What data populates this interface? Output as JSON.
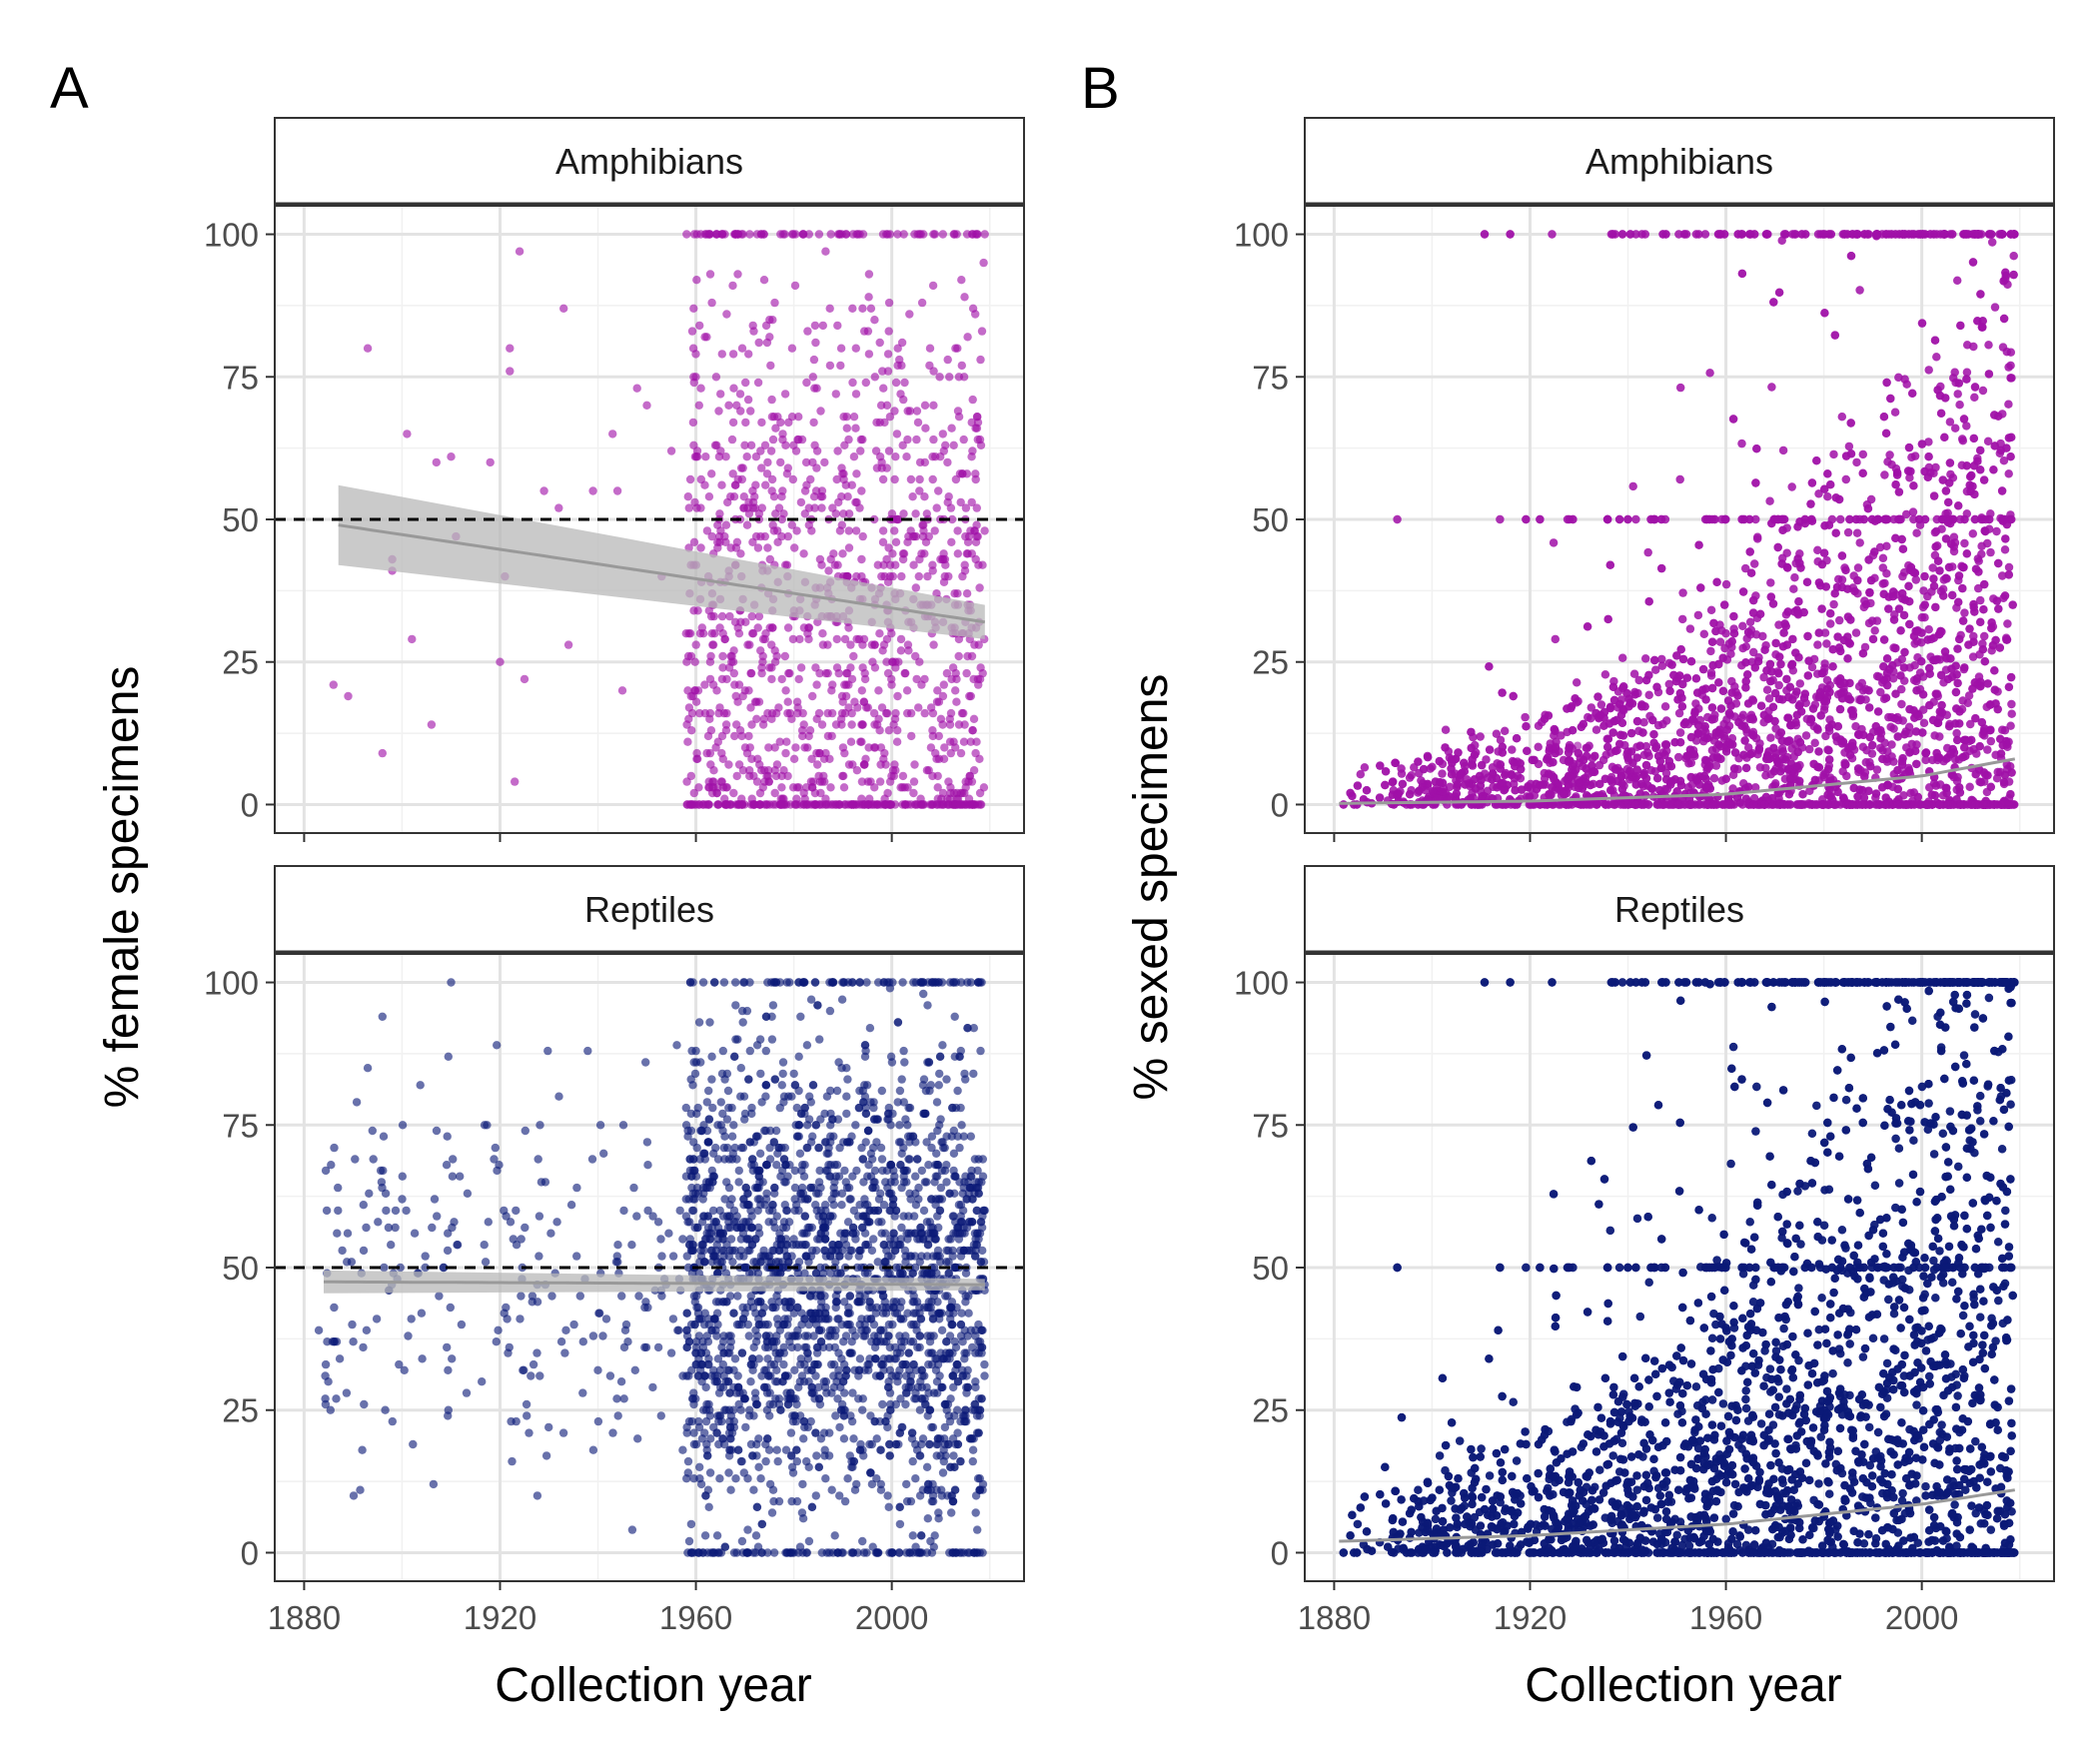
{
  "figure": {
    "panel_letters": [
      "A",
      "B"
    ],
    "xlabel": "Collection year",
    "ylabel_left": "% female specimens",
    "ylabel_right": "% sexed specimens"
  },
  "colors": {
    "amphibians": "#a010a8",
    "reptiles": "#0b1a78",
    "trend_line": "#999999",
    "ribbon": "#b8b8b8",
    "grid_major": "#e3e3e3",
    "grid_minor": "#f1f1f1",
    "reference_line": "#000000"
  },
  "chart_data": [
    {
      "id": "A-amphibians",
      "type": "scatter",
      "panel": "A",
      "facet": "Amphibians",
      "xlabel": "Collection year",
      "ylabel": "% female specimens",
      "xlim": [
        1874,
        2027
      ],
      "ylim": [
        -5,
        105
      ],
      "x_ticks": [
        1880,
        1920,
        1960,
        2000
      ],
      "y_ticks": [
        0,
        25,
        50,
        75,
        100
      ],
      "grid": true,
      "reference_line_y": 50,
      "trend": {
        "x": [
          1887,
          2019
        ],
        "y": [
          49,
          32
        ],
        "band_lower": [
          42,
          29
        ],
        "band_upper": [
          56,
          35
        ]
      },
      "points": {
        "approx_count": 1400,
        "dense_range": [
          1958,
          2019
        ],
        "sparse_points": [
          [
            1886,
            21
          ],
          [
            1893,
            80
          ],
          [
            1889,
            19
          ],
          [
            1896,
            9
          ],
          [
            1898,
            41
          ],
          [
            1898,
            43
          ],
          [
            1901,
            65
          ],
          [
            1902,
            29
          ],
          [
            1906,
            14
          ],
          [
            1907,
            60
          ],
          [
            1910,
            61
          ],
          [
            1911,
            47
          ],
          [
            1918,
            60
          ],
          [
            1920,
            25
          ],
          [
            1921,
            40
          ],
          [
            1922,
            80
          ],
          [
            1922,
            76
          ],
          [
            1923,
            4
          ],
          [
            1924,
            97
          ],
          [
            1925,
            22
          ],
          [
            1929,
            55
          ],
          [
            1932,
            52
          ],
          [
            1933,
            87
          ],
          [
            1934,
            28
          ],
          [
            1939,
            55
          ],
          [
            1943,
            65
          ],
          [
            1944,
            55
          ],
          [
            1945,
            20
          ],
          [
            1948,
            73
          ],
          [
            1950,
            70
          ],
          [
            1953,
            40
          ],
          [
            1955,
            62
          ]
        ],
        "pile_y": [
          0,
          100
        ]
      }
    },
    {
      "id": "A-reptiles",
      "type": "scatter",
      "panel": "A",
      "facet": "Reptiles",
      "xlabel": "Collection year",
      "ylabel": "% female specimens",
      "xlim": [
        1874,
        2027
      ],
      "ylim": [
        -5,
        105
      ],
      "x_ticks": [
        1880,
        1920,
        1960,
        2000
      ],
      "y_ticks": [
        0,
        25,
        50,
        75,
        100
      ],
      "grid": true,
      "reference_line_y": 50,
      "trend": {
        "x": [
          1884,
          2019
        ],
        "y": [
          47.5,
          47
        ],
        "band_lower": [
          45.5,
          46
        ],
        "band_upper": [
          49.5,
          48
        ]
      },
      "points": {
        "approx_count": 2500,
        "dense_range": [
          1958,
          2019
        ],
        "sparse_range": [
          1884,
          1958
        ],
        "highlights": [
          [
            1910,
            100
          ],
          [
            1896,
            94
          ],
          [
            1893,
            85
          ],
          [
            1883,
            39
          ]
        ],
        "pile_y": [
          0,
          100
        ]
      }
    },
    {
      "id": "B-amphibians",
      "type": "scatter",
      "panel": "B",
      "facet": "Amphibians",
      "xlabel": "Collection year",
      "ylabel": "% sexed specimens",
      "xlim": [
        1874,
        2027
      ],
      "ylim": [
        -5,
        105
      ],
      "x_ticks": [
        1880,
        1920,
        1960,
        2000
      ],
      "y_ticks": [
        0,
        25,
        50,
        75,
        100
      ],
      "grid": true,
      "trend": {
        "x": [
          1881,
          1920,
          1960,
          2000,
          2019
        ],
        "y": [
          0.2,
          0.6,
          1.8,
          5,
          8
        ]
      },
      "points": {
        "approx_count": 6000,
        "range": [
          1881,
          2019
        ],
        "shape": "density near 0, increasing with year; column of points at 100 after 1965",
        "pile_y": [
          0,
          50,
          100
        ]
      }
    },
    {
      "id": "B-reptiles",
      "type": "scatter",
      "panel": "B",
      "facet": "Reptiles",
      "xlabel": "Collection year",
      "ylabel": "% sexed specimens",
      "xlim": [
        1874,
        2027
      ],
      "ylim": [
        -5,
        105
      ],
      "x_ticks": [
        1880,
        1920,
        1960,
        2000
      ],
      "y_ticks": [
        0,
        25,
        50,
        75,
        100
      ],
      "grid": true,
      "trend": {
        "x": [
          1881,
          1920,
          1960,
          2000,
          2019
        ],
        "y": [
          2,
          3,
          5,
          8.5,
          11
        ]
      },
      "points": {
        "approx_count": 9000,
        "range": [
          1881,
          2019
        ],
        "shape": "dense near 0, filling in to a solid mass after 1970",
        "pile_y": [
          0,
          50,
          100
        ]
      }
    }
  ]
}
